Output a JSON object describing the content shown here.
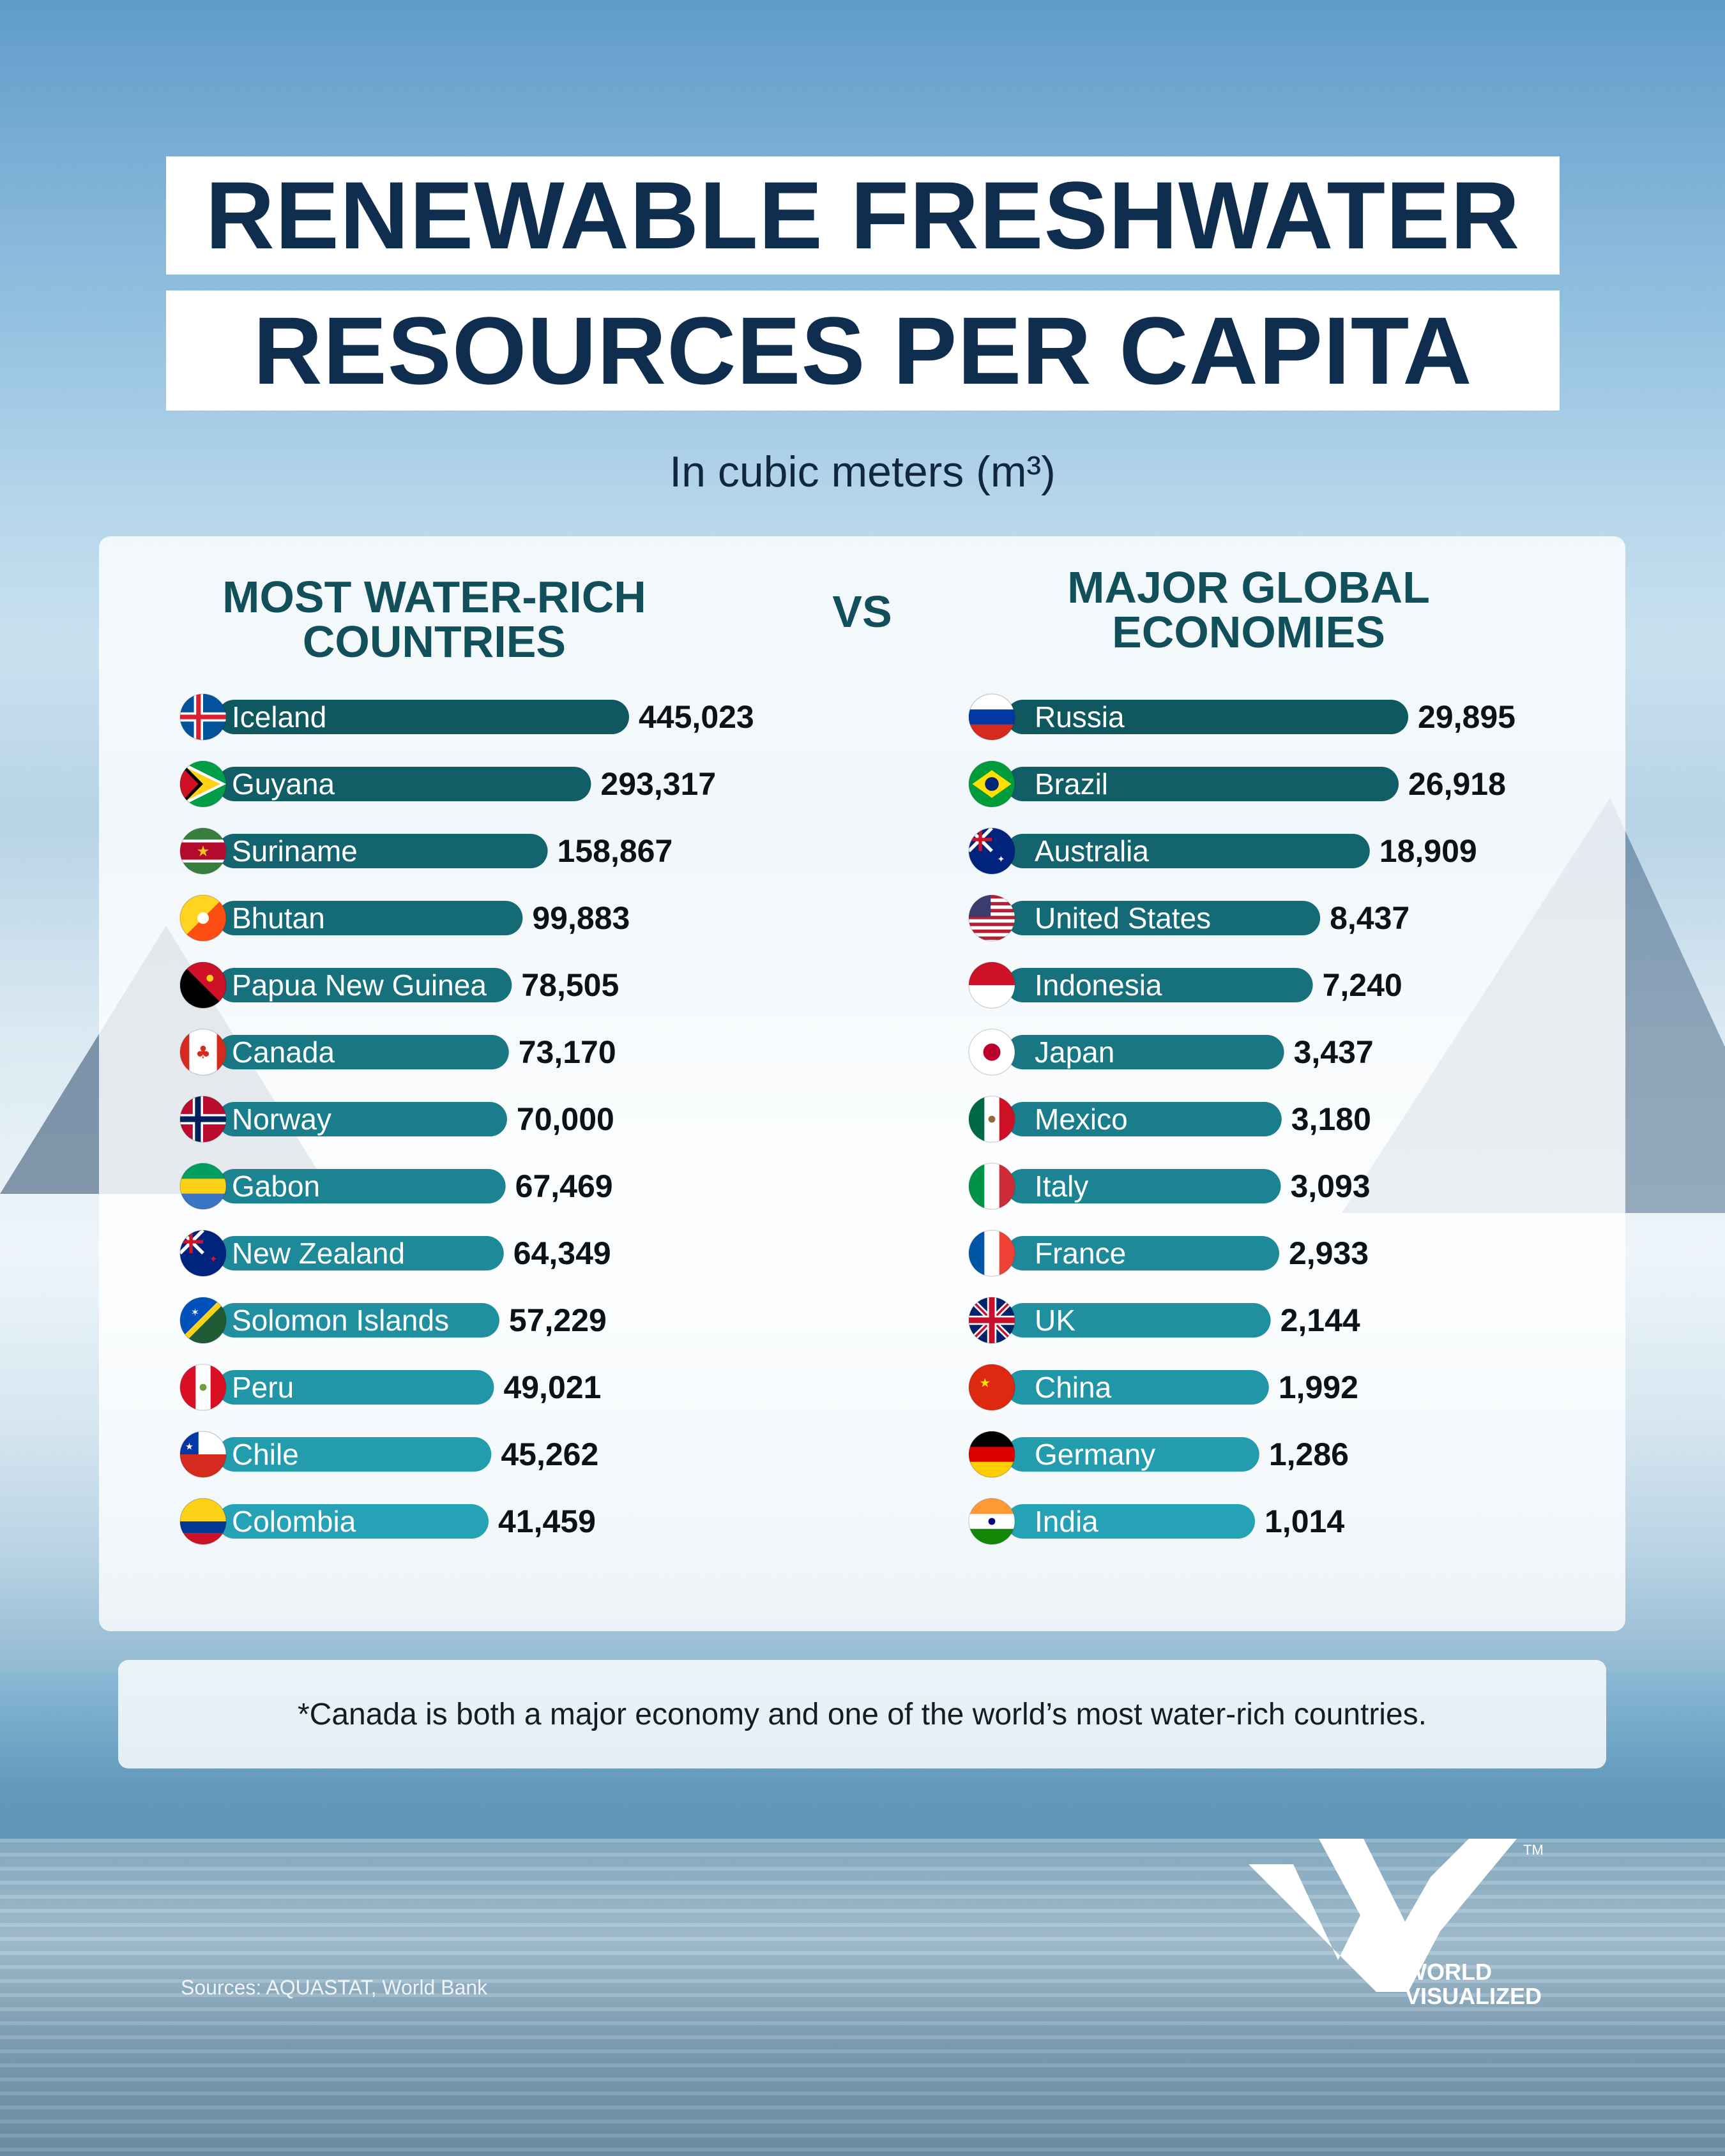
{
  "title_line_1": "RENEWABLE FRESHWATER",
  "title_line_2": "RESOURCES PER CAPITA",
  "subtitle": "In cubic meters (m³)",
  "vs_label": "VS",
  "footnote": "*Canada is both a major economy and one of the world’s most water-rich countries.",
  "sources": "Sources: AQUASTAT, World Bank",
  "brand": {
    "line_1": "WORLD",
    "line_2": "VISUALIZED",
    "tm": "TM"
  },
  "chart_data": [
    {
      "type": "bar",
      "orientation": "horizontal",
      "title": "MOST WATER-RICH COUNTRIES",
      "categories": [
        "Iceland",
        "Guyana",
        "Suriname",
        "Bhutan",
        "Papua New Guinea",
        "Canada",
        "Norway",
        "Gabon",
        "New Zealand",
        "Solomon Islands",
        "Peru",
        "Chile",
        "Colombia"
      ],
      "values": [
        445023,
        293317,
        158867,
        99883,
        78505,
        73170,
        70000,
        67469,
        64349,
        57229,
        49021,
        45262,
        41459
      ],
      "labels": [
        "445,023",
        "293,317",
        "158,867",
        "99,883",
        "78,505",
        "73,170",
        "70,000",
        "67,469",
        "64,349",
        "57,229",
        "49,021",
        "45,262",
        "41,459"
      ],
      "flags": [
        "iceland-flag-icon",
        "guyana-flag-icon",
        "suriname-flag-icon",
        "bhutan-flag-icon",
        "papua-new-guinea-flag-icon",
        "canada-flag-icon",
        "norway-flag-icon",
        "gabon-flag-icon",
        "new-zealand-flag-icon",
        "solomon-islands-flag-icon",
        "peru-flag-icon",
        "chile-flag-icon",
        "colombia-flag-icon"
      ],
      "bar_color_top": "#0f5860",
      "bar_color_bottom": "#25a2b5"
    },
    {
      "type": "bar",
      "orientation": "horizontal",
      "title": "MAJOR GLOBAL ECONOMIES",
      "categories": [
        "Russia",
        "Brazil",
        "Australia",
        "United States",
        "Indonesia",
        "Japan",
        "Mexico",
        "Italy",
        "France",
        "UK",
        "China",
        "Germany",
        "India"
      ],
      "values": [
        29895,
        26918,
        18909,
        8437,
        7240,
        3437,
        3180,
        3093,
        2933,
        2144,
        1992,
        1286,
        1014
      ],
      "labels": [
        "29,895",
        "26,918",
        "18,909",
        "8,437",
        "7,240",
        "3,437",
        "3,180",
        "3,093",
        "2,933",
        "2,144",
        "1,992",
        "1,286",
        "1,014"
      ],
      "flags": [
        "russia-flag-icon",
        "brazil-flag-icon",
        "australia-flag-icon",
        "united-states-flag-icon",
        "indonesia-flag-icon",
        "japan-flag-icon",
        "mexico-flag-icon",
        "italy-flag-icon",
        "france-flag-icon",
        "uk-flag-icon",
        "china-flag-icon",
        "germany-flag-icon",
        "india-flag-icon"
      ],
      "bar_color_top": "#0f5860",
      "bar_color_bottom": "#25a2b5"
    }
  ]
}
